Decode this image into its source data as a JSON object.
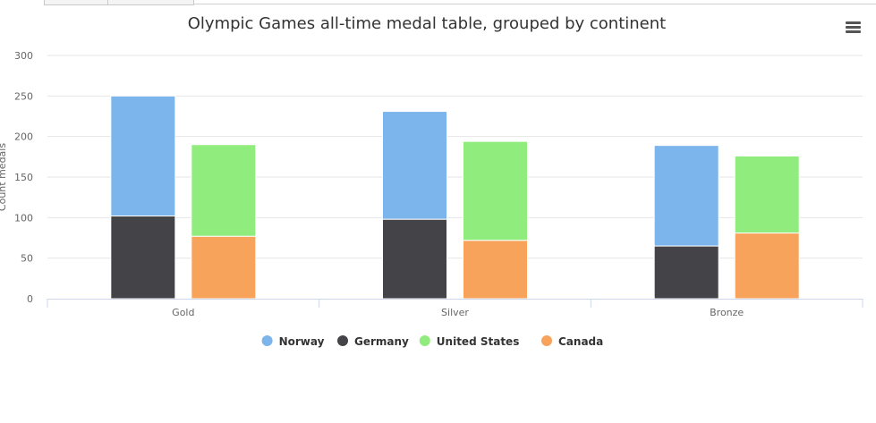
{
  "chart_data": {
    "type": "bar",
    "stacked": true,
    "grouped": true,
    "title": "Olympic Games all-time medal table, grouped by continent",
    "xlabel": "",
    "ylabel": "Count medals",
    "ylim": [
      0,
      300
    ],
    "yticks": [
      0,
      50,
      100,
      150,
      200,
      250,
      300
    ],
    "categories": [
      "Gold",
      "Silver",
      "Bronze"
    ],
    "grid": true,
    "legend_position": "bottom",
    "series": [
      {
        "name": "Norway",
        "stack": "1",
        "color": "#7cb5ec",
        "values": [
          148,
          133,
          124
        ]
      },
      {
        "name": "Germany",
        "stack": "1",
        "color": "#434348",
        "values": [
          102,
          98,
          65
        ]
      },
      {
        "name": "United States",
        "stack": "2",
        "color": "#90ed7d",
        "values": [
          113,
          122,
          95
        ]
      },
      {
        "name": "Canada",
        "stack": "2",
        "color": "#f7a35c",
        "values": [
          77,
          72,
          81
        ]
      }
    ]
  },
  "menu": {
    "icon": "hamburger-menu-icon"
  }
}
